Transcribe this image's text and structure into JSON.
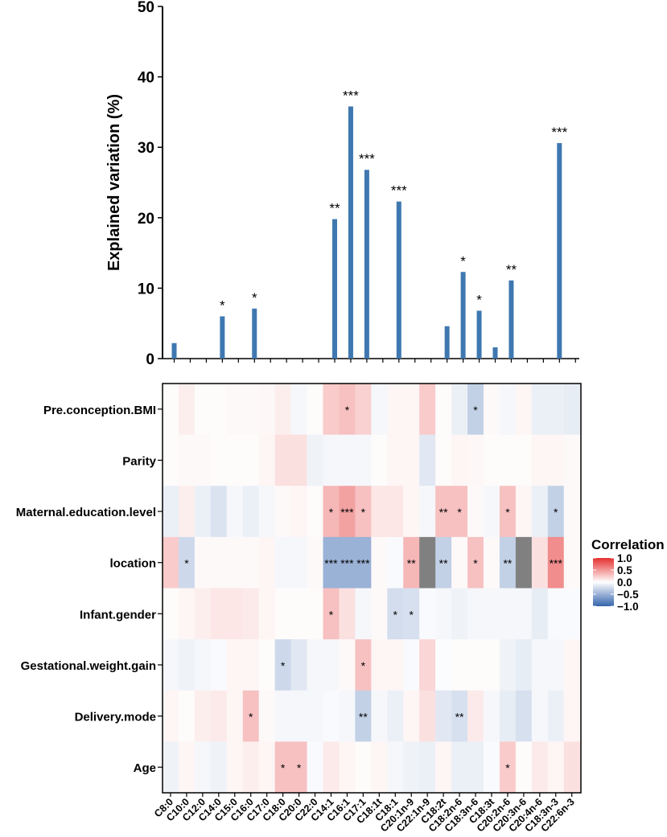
{
  "chart_data": [
    {
      "type": "bar",
      "ylabel": "Explained variation (%)",
      "ylim": [
        0,
        50
      ],
      "yticks": [
        0,
        10,
        20,
        30,
        40,
        50
      ],
      "categories": [
        "C8:0",
        "C10:0",
        "C12:0",
        "C14:0",
        "C15:0",
        "C16:0",
        "C17:0",
        "C18:0",
        "C20:0",
        "C22:0",
        "C14:1",
        "C16:1",
        "C17:1",
        "C18:1t",
        "C18:1",
        "C20:1n-9",
        "C22:1n-9",
        "C18:2t",
        "C18:2n-6",
        "C18:3n-6",
        "C18:3t",
        "C20:2n-6",
        "C20:3n-6",
        "C20:4n-6",
        "C18:3n-3",
        "C22:6n-3"
      ],
      "values": [
        2.2,
        0,
        0,
        6.0,
        0,
        7.1,
        0,
        0,
        0,
        0,
        19.8,
        35.8,
        26.8,
        0,
        22.3,
        0,
        0,
        4.6,
        12.3,
        6.8,
        1.6,
        11.1,
        0,
        0,
        30.6,
        0
      ],
      "significance": [
        "",
        "",
        "",
        "*",
        "",
        "*",
        "",
        "",
        "",
        "",
        "**",
        "***",
        "***",
        "",
        "***",
        "",
        "",
        "",
        "*",
        "*",
        "",
        "**",
        "",
        "",
        "***",
        ""
      ],
      "bar_color": "#3f78b0"
    },
    {
      "type": "heatmap",
      "legend_title": "Correlation",
      "color_range": [
        -1.0,
        1.0
      ],
      "colorbar_ticks": [
        1.0,
        0.5,
        0.0,
        -0.5,
        -1.0
      ],
      "colorbar_labels": [
        "1.0",
        "0.5",
        "0.0",
        "−0.5",
        "−1.0"
      ],
      "colors": {
        "positive": "#e53030",
        "neutral": "#ffffff",
        "negative": "#3565ad",
        "missing": "#808080"
      },
      "rows": [
        "Pre.conception.BMI",
        "Parity",
        "Maternal.education.level",
        "location",
        "Infant.gender",
        "Gestational.weight.gain",
        "Delivery.mode",
        "Age"
      ],
      "columns": [
        "C8:0",
        "C10:0",
        "C12:0",
        "C14:0",
        "C15:0",
        "C16:0",
        "C17:0",
        "C18:0",
        "C20:0",
        "C22:0",
        "C14:1",
        "C16:1",
        "C17:1",
        "C18:1t",
        "C18:1",
        "C20:1n-9",
        "C22:1n-9",
        "C18:2t",
        "C18:2n-6",
        "C18:3n-6",
        "C18:3t",
        "C20:2n-6",
        "C20:3n-6",
        "C20:4n-6",
        "C18:3n-3",
        "C22:6n-3"
      ],
      "values": [
        [
          0.02,
          0.08,
          0.02,
          0.02,
          0.03,
          0.03,
          0.04,
          0.08,
          -0.05,
          0.02,
          0.25,
          0.3,
          0.22,
          -0.05,
          0.05,
          0.05,
          0.25,
          0.02,
          -0.1,
          -0.3,
          0.03,
          -0.05,
          0.05,
          -0.1,
          -0.1,
          -0.12
        ],
        [
          0.02,
          0.03,
          0.03,
          0.02,
          0.02,
          0.02,
          0.05,
          0.15,
          0.15,
          -0.08,
          -0.05,
          -0.05,
          -0.05,
          0.02,
          0.05,
          0.05,
          -0.15,
          0.02,
          0.05,
          0.04,
          0.02,
          0.02,
          0.02,
          0.05,
          0.05,
          0.03
        ],
        [
          -0.1,
          0.08,
          -0.1,
          -0.18,
          -0.05,
          -0.1,
          -0.05,
          0.03,
          0.05,
          0.02,
          0.35,
          0.45,
          0.3,
          0.12,
          0.12,
          0.05,
          -0.05,
          0.3,
          0.3,
          0.03,
          -0.05,
          0.3,
          0.05,
          -0.1,
          -0.3,
          0.03
        ],
        [
          0.25,
          -0.25,
          0.03,
          0.03,
          0.03,
          0.03,
          0.05,
          -0.05,
          -0.05,
          0.03,
          -0.5,
          -0.5,
          -0.5,
          0.03,
          -0.03,
          0.35,
          null,
          -0.3,
          0.03,
          0.3,
          0.03,
          -0.3,
          null,
          0.15,
          0.55,
          0.03
        ],
        [
          0.02,
          0.05,
          0.08,
          0.12,
          0.12,
          0.1,
          0.05,
          0.02,
          0.02,
          0.02,
          0.3,
          0.15,
          -0.05,
          0.03,
          -0.22,
          -0.2,
          -0.03,
          -0.05,
          -0.08,
          -0.05,
          -0.05,
          -0.05,
          -0.05,
          -0.12,
          -0.03,
          -0.03
        ],
        [
          -0.05,
          -0.08,
          -0.05,
          -0.03,
          0.05,
          0.05,
          0.02,
          -0.25,
          -0.15,
          -0.05,
          -0.05,
          0.03,
          0.3,
          0.05,
          0.05,
          -0.03,
          0.2,
          -0.02,
          0.02,
          0.02,
          0.02,
          -0.08,
          -0.12,
          -0.05,
          -0.05,
          0.05
        ],
        [
          0.05,
          0.02,
          0.08,
          0.1,
          0.05,
          0.3,
          0.03,
          -0.05,
          -0.05,
          -0.05,
          -0.03,
          -0.05,
          -0.3,
          -0.05,
          -0.1,
          0.05,
          0.15,
          -0.15,
          -0.2,
          0.1,
          -0.05,
          -0.12,
          -0.2,
          -0.05,
          -0.1,
          0.05
        ],
        [
          -0.08,
          0.05,
          -0.05,
          -0.08,
          0.05,
          0.08,
          0.05,
          0.3,
          0.3,
          -0.03,
          0.1,
          0.05,
          0.02,
          0.05,
          -0.05,
          -0.08,
          -0.1,
          0.05,
          -0.1,
          -0.1,
          -0.03,
          0.25,
          0.02,
          0.1,
          0.05,
          0.15
        ]
      ],
      "annotations": [
        [
          "",
          "",
          "",
          "",
          "",
          "",
          "",
          "",
          "",
          "",
          "",
          "*",
          "",
          "",
          "",
          "",
          "",
          "",
          "",
          "*",
          "",
          "",
          "",
          "",
          "",
          ""
        ],
        [
          "",
          "",
          "",
          "",
          "",
          "",
          "",
          "",
          "",
          "",
          "",
          "",
          "",
          "",
          "",
          "",
          "",
          "",
          "",
          "",
          "",
          "",
          "",
          "",
          "",
          ""
        ],
        [
          "",
          "",
          "",
          "",
          "",
          "",
          "",
          "",
          "",
          "",
          "*",
          "***",
          "*",
          "",
          "",
          "",
          "",
          "**",
          "*",
          "",
          "",
          "*",
          "",
          "",
          "*",
          ""
        ],
        [
          "",
          "*",
          "",
          "",
          "",
          "",
          "",
          "",
          "",
          "",
          "***",
          "***",
          "***",
          "",
          "",
          "**",
          "",
          "**",
          "",
          "*",
          "",
          "**",
          "",
          "",
          "***",
          ""
        ],
        [
          "",
          "",
          "",
          "",
          "",
          "",
          "",
          "",
          "",
          "",
          "*",
          "",
          "",
          "",
          "*",
          "*",
          "",
          "",
          "",
          "",
          "",
          "",
          "",
          "",
          "",
          ""
        ],
        [
          "",
          "",
          "",
          "",
          "",
          "",
          "",
          "*",
          "",
          "",
          "",
          "",
          "*",
          "",
          "",
          "",
          "",
          "",
          "",
          "",
          "",
          "",
          "",
          "",
          "",
          ""
        ],
        [
          "",
          "",
          "",
          "",
          "",
          "*",
          "",
          "",
          "",
          "",
          "",
          "",
          "**",
          "",
          "",
          "",
          "",
          "",
          "**",
          "",
          "",
          "",
          "",
          "",
          "",
          ""
        ],
        [
          "",
          "",
          "",
          "",
          "",
          "",
          "",
          "*",
          "*",
          "",
          "",
          "",
          "",
          "",
          "",
          "",
          "",
          "",
          "",
          "",
          "",
          "*",
          "",
          "",
          "",
          ""
        ]
      ]
    }
  ]
}
